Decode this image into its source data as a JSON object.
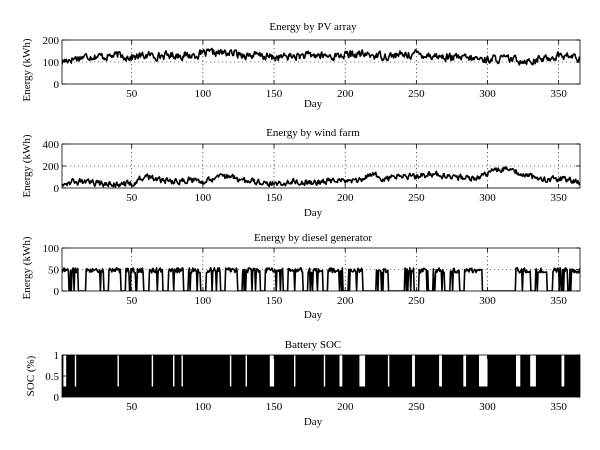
{
  "chart_data": [
    {
      "id": "pv",
      "type": "line",
      "title": "Energy by PV array",
      "xlabel": "Day",
      "ylabel": "Energy (kWh)",
      "xlim": [
        1,
        365
      ],
      "ylim": [
        0,
        200
      ],
      "xticks": [
        50,
        100,
        150,
        200,
        250,
        300,
        350
      ],
      "yticks": [
        0,
        100,
        200
      ],
      "gridlines_y": [
        100
      ],
      "grid": true,
      "profile": {
        "days": [
          1,
          10,
          20,
          30,
          40,
          50,
          60,
          70,
          80,
          90,
          100,
          110,
          120,
          130,
          140,
          150,
          160,
          170,
          180,
          190,
          200,
          210,
          220,
          230,
          240,
          250,
          260,
          270,
          280,
          290,
          300,
          310,
          320,
          330,
          340,
          350,
          360,
          365
        ],
        "mean": [
          105,
          118,
          128,
          125,
          130,
          122,
          130,
          128,
          132,
          128,
          138,
          142,
          140,
          132,
          128,
          120,
          125,
          128,
          130,
          125,
          132,
          135,
          130,
          128,
          132,
          138,
          130,
          122,
          118,
          115,
          112,
          115,
          110,
          105,
          115,
          130,
          125,
          110
        ],
        "noise": 28,
        "min": 20,
        "max": 175
      }
    },
    {
      "id": "wind",
      "type": "line",
      "title": "Energy by wind farm",
      "xlabel": "Day",
      "ylabel": "Energy (kWh)",
      "xlim": [
        1,
        365
      ],
      "ylim": [
        0,
        400
      ],
      "xticks": [
        50,
        100,
        150,
        200,
        250,
        300,
        350
      ],
      "yticks": [
        0,
        200,
        400
      ],
      "gridlines_y": [
        200
      ],
      "grid": true,
      "profile": {
        "days": [
          1,
          10,
          20,
          30,
          40,
          50,
          60,
          70,
          80,
          90,
          100,
          110,
          120,
          130,
          140,
          150,
          160,
          170,
          180,
          190,
          200,
          210,
          220,
          230,
          240,
          250,
          260,
          270,
          280,
          290,
          300,
          310,
          320,
          330,
          340,
          350,
          360,
          365
        ],
        "mean": [
          50,
          60,
          45,
          40,
          35,
          40,
          110,
          70,
          55,
          80,
          60,
          110,
          90,
          60,
          50,
          40,
          60,
          50,
          55,
          70,
          60,
          80,
          110,
          90,
          120,
          100,
          130,
          110,
          100,
          90,
          140,
          170,
          150,
          100,
          70,
          90,
          60,
          50
        ],
        "noise": 45,
        "min": 5,
        "max": 215
      }
    },
    {
      "id": "diesel",
      "type": "line",
      "title": "Energy by diesel generator",
      "xlabel": "Day",
      "ylabel": "Energy (kWh)",
      "xlim": [
        1,
        365
      ],
      "ylim": [
        0,
        100
      ],
      "xticks": [
        50,
        100,
        150,
        200,
        250,
        300,
        350
      ],
      "yticks": [
        0,
        50,
        100
      ],
      "gridlines_y": [
        50
      ],
      "grid": true,
      "profile": {
        "on_level": 50,
        "on_ranges": [
          [
            1,
            12
          ],
          [
            18,
            30
          ],
          [
            34,
            42
          ],
          [
            46,
            58
          ],
          [
            62,
            72
          ],
          [
            76,
            86
          ],
          [
            90,
            98
          ],
          [
            102,
            112
          ],
          [
            116,
            124
          ],
          [
            128,
            140
          ],
          [
            144,
            156
          ],
          [
            160,
            170
          ],
          [
            174,
            184
          ],
          [
            188,
            198
          ],
          [
            202,
            212
          ],
          [
            222,
            230
          ],
          [
            242,
            248
          ],
          [
            252,
            258
          ],
          [
            262,
            270
          ],
          [
            274,
            280
          ],
          [
            284,
            296
          ],
          [
            320,
            330
          ],
          [
            334,
            342
          ],
          [
            346,
            356
          ],
          [
            358,
            365
          ]
        ]
      }
    },
    {
      "id": "soc",
      "type": "area",
      "title": "Battery SOC",
      "xlabel": "Day",
      "ylabel": "SOC (%)",
      "xlim": [
        1,
        365
      ],
      "ylim": [
        0,
        1
      ],
      "xticks": [
        50,
        100,
        150,
        200,
        250,
        300,
        350
      ],
      "yticks": [
        0,
        0.5,
        1
      ],
      "grid": false,
      "profile": {
        "low_level": 0.25,
        "gaps": [
          [
            2,
            4
          ],
          [
            10,
            11
          ],
          [
            40,
            41
          ],
          [
            64,
            65
          ],
          [
            79,
            80
          ],
          [
            85,
            86
          ],
          [
            119,
            120
          ],
          [
            130,
            131
          ],
          [
            147,
            150
          ],
          [
            164,
            165
          ],
          [
            185,
            186
          ],
          [
            196,
            198
          ],
          [
            210,
            214
          ],
          [
            230,
            231
          ],
          [
            247,
            249
          ],
          [
            266,
            268
          ],
          [
            283,
            285
          ],
          [
            294,
            300
          ],
          [
            320,
            323
          ],
          [
            330,
            334
          ],
          [
            352,
            354
          ]
        ]
      }
    }
  ]
}
